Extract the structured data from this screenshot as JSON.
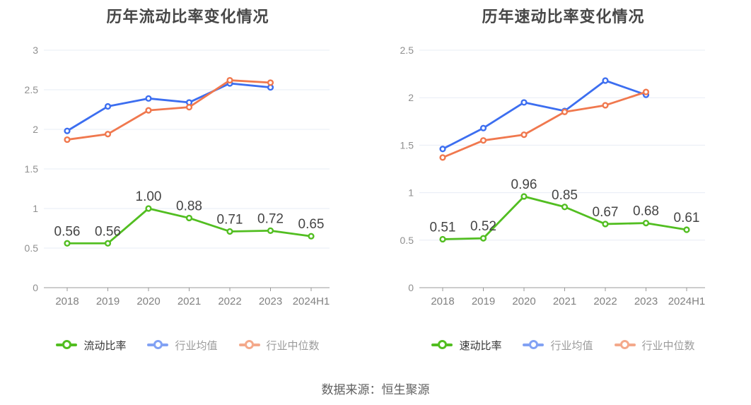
{
  "footer": {
    "text": "数据来源：恒生聚源"
  },
  "colors": {
    "green": "#52BE21",
    "blue": "#3C6EF0",
    "orange": "#F0784E",
    "legend_blue": "#82A2F4",
    "legend_orange": "#F4A98B",
    "grid": "#E7ECF5",
    "axis_line": "#999999",
    "y_tick_label": "#8F8F8F",
    "x_tick_label": "#818181",
    "value_label": "#444444",
    "title": "#474747",
    "legend_text_active": "#333333",
    "legend_text_muted": "#9B9B9B",
    "background": "#FFFFFF"
  },
  "chart_data": [
    {
      "type": "line",
      "title": "历年流动比率变化情况",
      "categories": [
        "2018",
        "2019",
        "2020",
        "2021",
        "2022",
        "2023",
        "2024H1"
      ],
      "ylim": [
        0,
        3
      ],
      "ytick_step": 0.5,
      "grid": true,
      "legend_position": "bottom",
      "series": [
        {
          "name": "流动比率",
          "color": "#52BE21",
          "legend_color": "#52BE21",
          "values": [
            0.56,
            0.56,
            1.0,
            0.88,
            0.71,
            0.72,
            0.65
          ],
          "show_labels": true,
          "legend_emphasis": true
        },
        {
          "name": "行业均值",
          "color": "#3C6EF0",
          "legend_color": "#82A2F4",
          "values": [
            1.98,
            2.29,
            2.39,
            2.34,
            2.58,
            2.53,
            null
          ],
          "show_labels": false,
          "legend_emphasis": false
        },
        {
          "name": "行业中位数",
          "color": "#F0784E",
          "legend_color": "#F4A98B",
          "values": [
            1.87,
            1.94,
            2.24,
            2.28,
            2.62,
            2.59,
            null
          ],
          "show_labels": false,
          "legend_emphasis": false
        }
      ]
    },
    {
      "type": "line",
      "title": "历年速动比率变化情况",
      "categories": [
        "2018",
        "2019",
        "2020",
        "2021",
        "2022",
        "2023",
        "2024H1"
      ],
      "ylim": [
        0,
        2.5
      ],
      "ytick_step": 0.5,
      "grid": true,
      "legend_position": "bottom",
      "series": [
        {
          "name": "速动比率",
          "color": "#52BE21",
          "legend_color": "#52BE21",
          "values": [
            0.51,
            0.52,
            0.96,
            0.85,
            0.67,
            0.68,
            0.61
          ],
          "show_labels": true,
          "legend_emphasis": true
        },
        {
          "name": "行业均值",
          "color": "#3C6EF0",
          "legend_color": "#82A2F4",
          "values": [
            1.46,
            1.68,
            1.95,
            1.86,
            2.18,
            2.03,
            null
          ],
          "show_labels": false,
          "legend_emphasis": false
        },
        {
          "name": "行业中位数",
          "color": "#F0784E",
          "legend_color": "#F4A98B",
          "values": [
            1.37,
            1.55,
            1.61,
            1.85,
            1.92,
            2.06,
            null
          ],
          "show_labels": false,
          "legend_emphasis": false
        }
      ]
    }
  ]
}
